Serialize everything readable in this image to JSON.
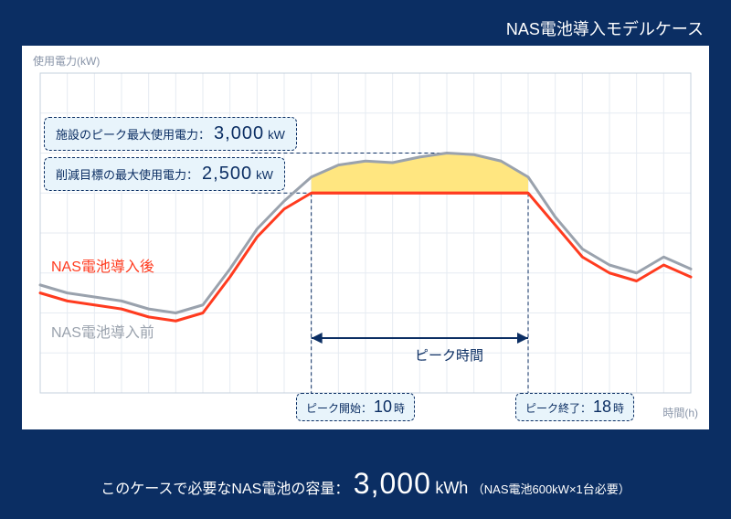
{
  "title": "NAS電池導入モデルケース",
  "chart": {
    "type": "line",
    "background_color": "#ffffff",
    "grid_color": "#e6ebf2",
    "axis_color": "#c6d0dc",
    "y_label": "使用電力(kW)",
    "x_label": "時間(h)",
    "x_range": [
      0,
      24
    ],
    "y_range": [
      0,
      4000
    ],
    "grid_x_step": 1,
    "grid_y_step": 500,
    "peak_start_h": 10,
    "peak_end_h": 18,
    "target_kw": 2500,
    "peak_kw": 3000,
    "series_before": {
      "name": "NAS電池導入前",
      "color": "#9aa2ad",
      "line_width": 3,
      "points": [
        [
          0,
          1350
        ],
        [
          1,
          1250
        ],
        [
          2,
          1200
        ],
        [
          3,
          1150
        ],
        [
          4,
          1050
        ],
        [
          5,
          1000
        ],
        [
          6,
          1100
        ],
        [
          7,
          1550
        ],
        [
          8,
          2050
        ],
        [
          9,
          2400
        ],
        [
          10,
          2700
        ],
        [
          11,
          2850
        ],
        [
          12,
          2900
        ],
        [
          13,
          2880
        ],
        [
          14,
          2950
        ],
        [
          15,
          3000
        ],
        [
          16,
          2980
        ],
        [
          17,
          2900
        ],
        [
          18,
          2700
        ],
        [
          19,
          2200
        ],
        [
          20,
          1800
        ],
        [
          21,
          1600
        ],
        [
          22,
          1500
        ],
        [
          23,
          1700
        ],
        [
          24,
          1550
        ]
      ]
    },
    "series_after": {
      "name": "NAS電池導入後",
      "color": "#ff3b1f",
      "line_width": 3,
      "points": [
        [
          0,
          1250
        ],
        [
          1,
          1150
        ],
        [
          2,
          1100
        ],
        [
          3,
          1050
        ],
        [
          4,
          950
        ],
        [
          5,
          900
        ],
        [
          6,
          1000
        ],
        [
          7,
          1450
        ],
        [
          8,
          1950
        ],
        [
          9,
          2300
        ],
        [
          10,
          2500
        ],
        [
          11,
          2500
        ],
        [
          12,
          2500
        ],
        [
          13,
          2500
        ],
        [
          14,
          2500
        ],
        [
          15,
          2500
        ],
        [
          16,
          2500
        ],
        [
          17,
          2500
        ],
        [
          18,
          2500
        ],
        [
          19,
          2100
        ],
        [
          20,
          1700
        ],
        [
          21,
          1500
        ],
        [
          22,
          1400
        ],
        [
          23,
          1600
        ],
        [
          24,
          1450
        ]
      ]
    },
    "shaved_fill": "#ffe680",
    "guide_dash_color": "#0b2e63",
    "arrow_color": "#0b2e63"
  },
  "callouts": {
    "peak": {
      "label": "施設のピーク最大使用電力：",
      "value": "3,000",
      "unit": "kW"
    },
    "target": {
      "label": "削減目標の最大使用電力：",
      "value": "2,500",
      "unit": "kW"
    },
    "peak_start": {
      "label": "ピーク開始：",
      "value": "10",
      "unit": "時"
    },
    "peak_end": {
      "label": "ピーク終了：",
      "value": "18",
      "unit": "時"
    },
    "peak_span": "ピーク時間"
  },
  "series_labels": {
    "after": "NAS電池導入後",
    "before": "NAS電池導入前"
  },
  "bottom": {
    "prefix": "このケースで必要なNAS電池の容量：",
    "value": "3,000",
    "unit": "kWh",
    "note": "（NAS電池600kW×1台必要）"
  }
}
